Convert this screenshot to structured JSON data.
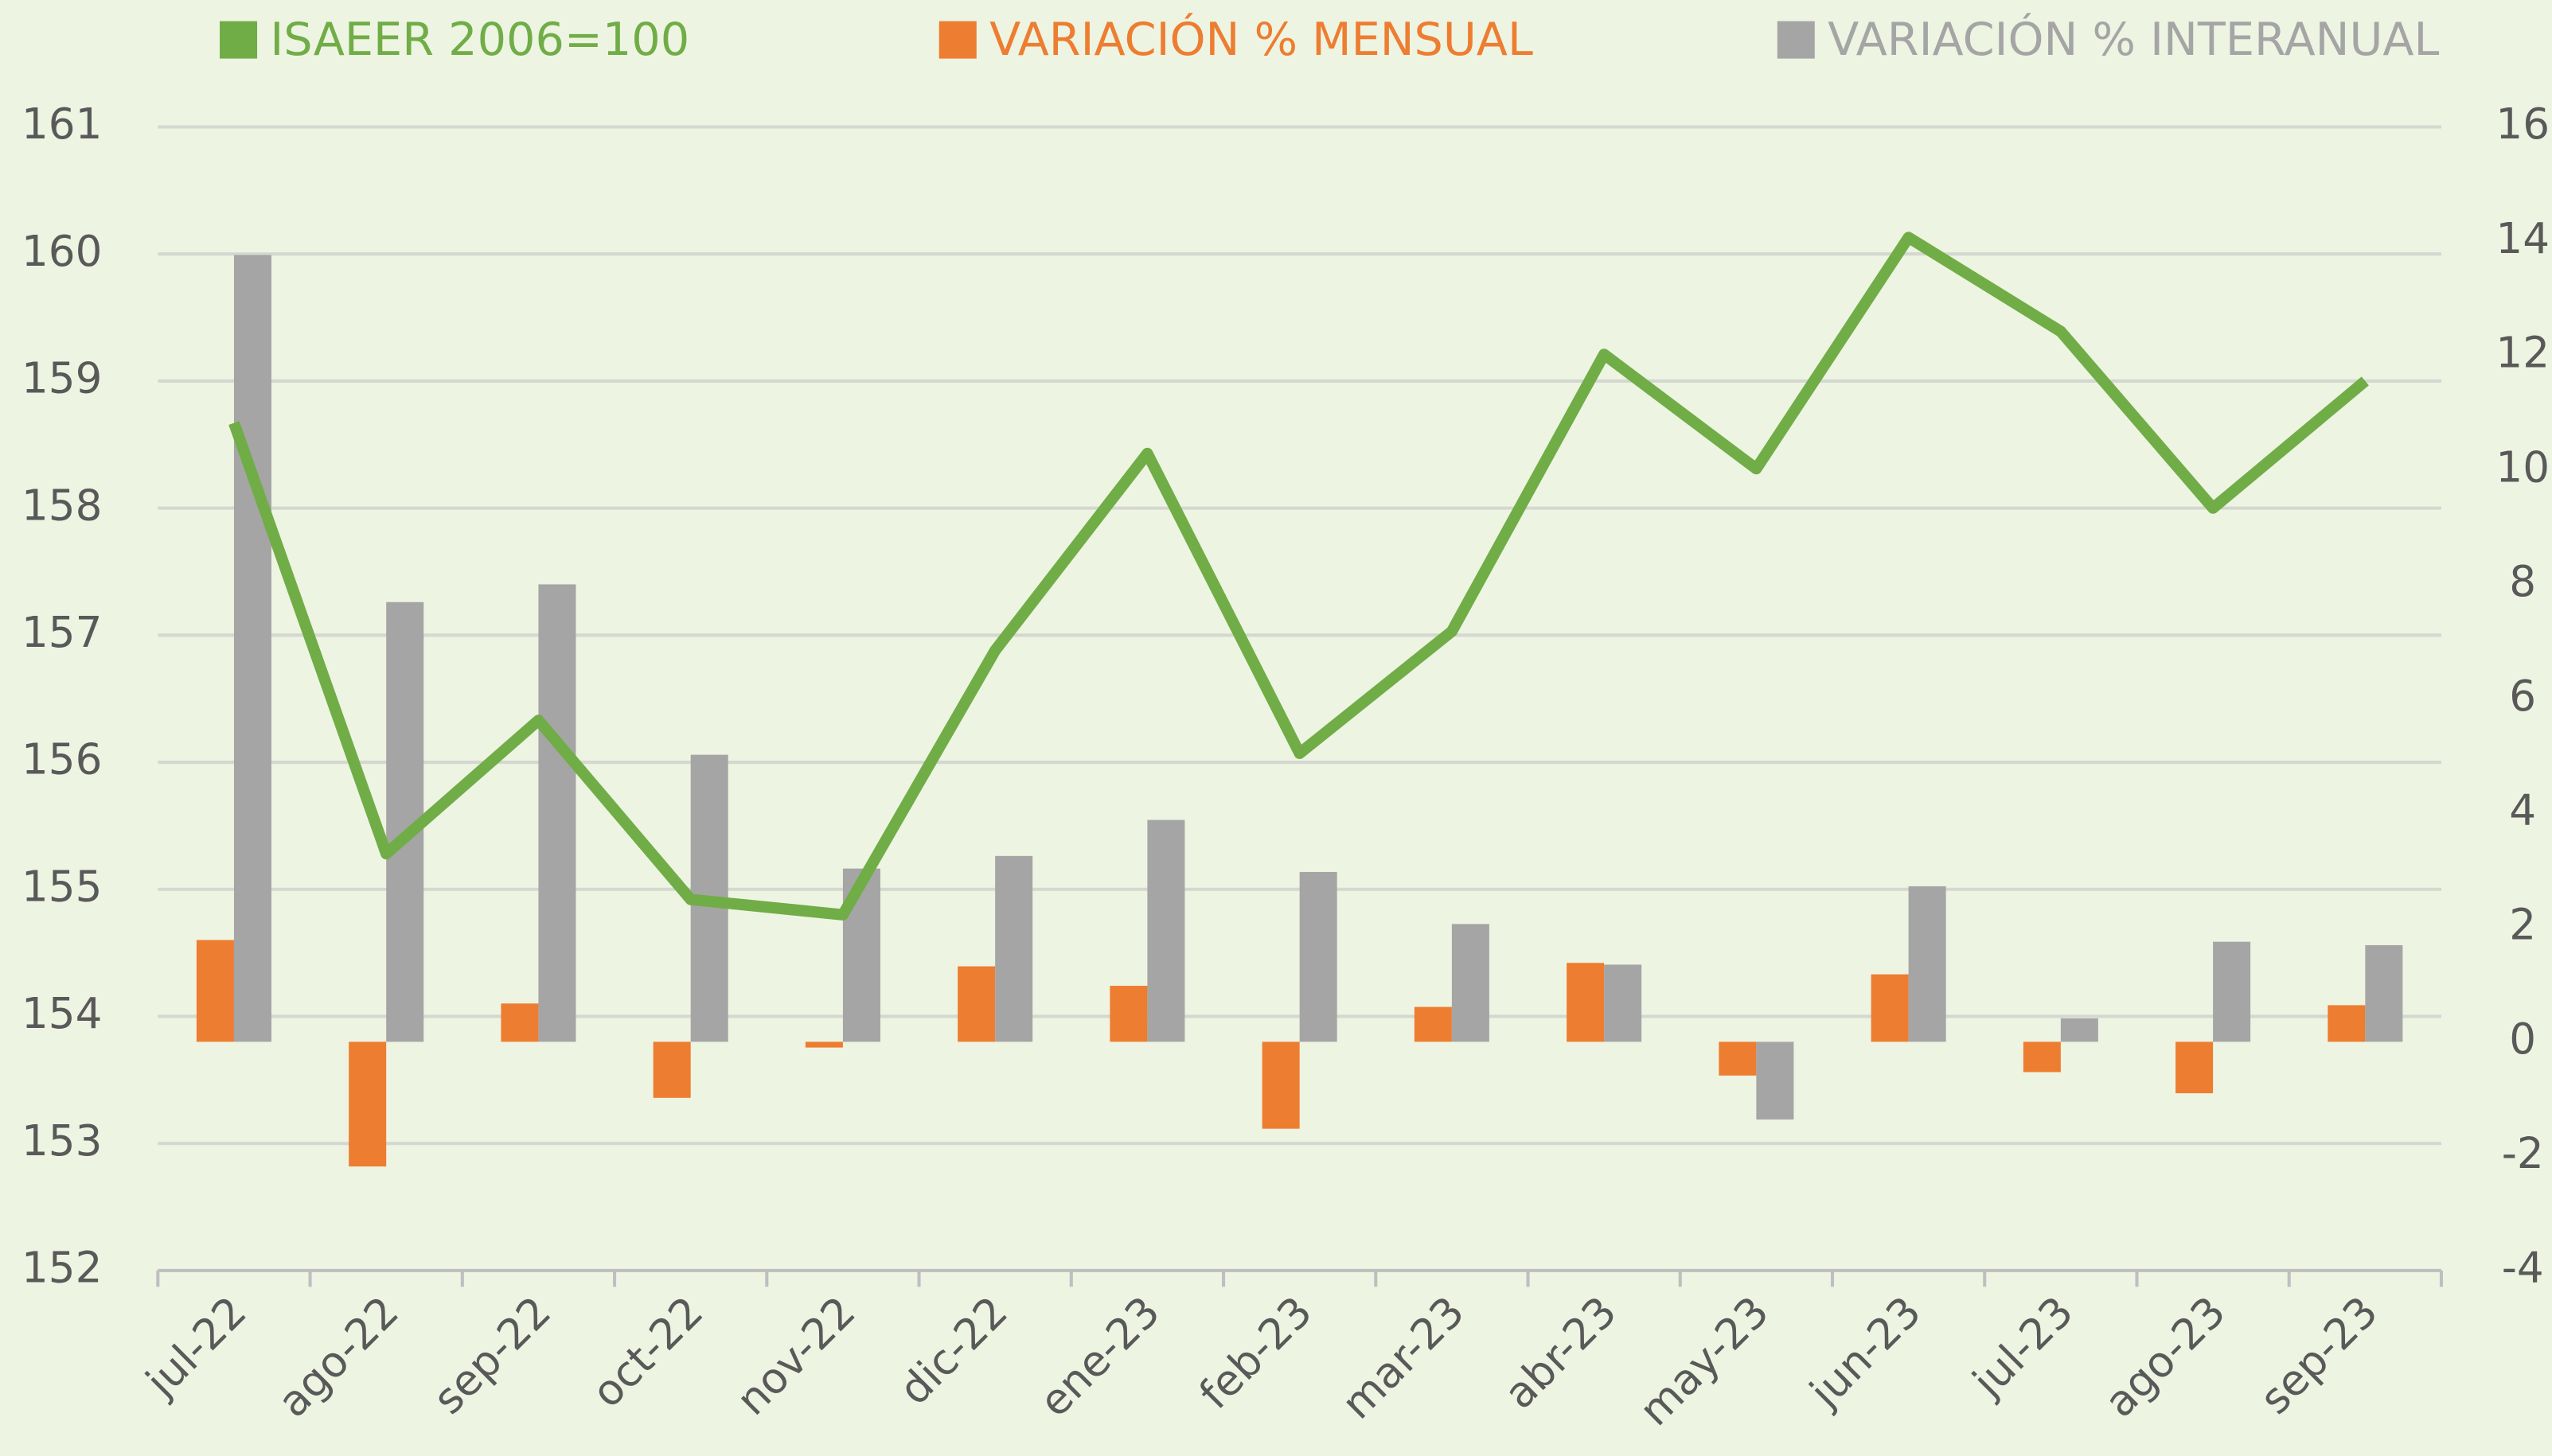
{
  "chart_data": {
    "type": "bar",
    "categories": [
      "jul-22",
      "ago-22",
      "sep-22",
      "oct-22",
      "nov-22",
      "dic-22",
      "ene-23",
      "feb-23",
      "mar-23",
      "abr-23",
      "may-23",
      "jun-23",
      "jul-23",
      "ago-23",
      "sep-23"
    ],
    "series": [
      {
        "name": "ISAEER 2006=100",
        "color": "#70ad47",
        "type": "line",
        "values": [
          158.67,
          155.28,
          156.33,
          154.92,
          154.8,
          156.88,
          158.43,
          156.07,
          157.03,
          159.21,
          158.31,
          160.13,
          159.39,
          158.0,
          159.0
        ]
      },
      {
        "name": "VARIACIÓN % MENSUAL",
        "color": "#ed7d31",
        "axis": "y2",
        "values": [
          1.78,
          -2.18,
          0.67,
          -0.98,
          -0.1,
          1.32,
          0.98,
          -1.52,
          0.61,
          1.38,
          -0.59,
          1.18,
          -0.53,
          -0.9,
          0.64
        ]
      },
      {
        "name": "VARIACIÓN % INTERANUAL",
        "color": "#a5a5a5",
        "axis": "y2",
        "values": [
          13.76,
          7.69,
          8.0,
          5.02,
          3.03,
          3.25,
          3.88,
          2.97,
          2.06,
          1.35,
          -1.36,
          2.72,
          0.41,
          1.75,
          1.69
        ]
      }
    ],
    "ylim": [
      152,
      161
    ],
    "yticks": [
      152,
      153,
      154,
      155,
      156,
      157,
      158,
      159,
      160,
      161
    ],
    "y2lim": [
      -4,
      16
    ],
    "y2ticks": [
      -4,
      -2,
      0,
      2,
      4,
      6,
      8,
      10,
      12,
      14,
      16
    ],
    "grid": true,
    "legend": "top"
  }
}
